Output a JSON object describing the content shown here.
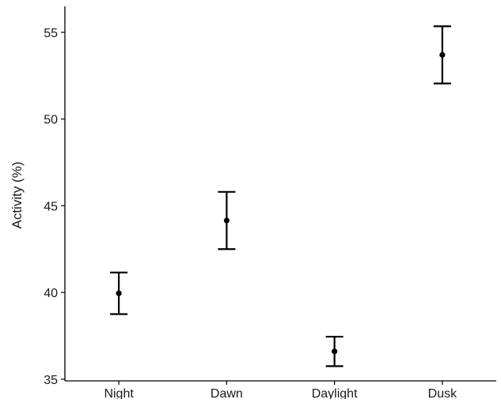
{
  "chart_data": {
    "type": "scatter",
    "style": "point-with-error-bars",
    "categories": [
      "Night",
      "Dawn",
      "Daylight",
      "Dusk"
    ],
    "series": [
      {
        "values": [
          39.95,
          44.15,
          36.6,
          53.7
        ],
        "error_low": [
          38.75,
          42.5,
          35.75,
          52.05
        ],
        "error_high": [
          41.15,
          45.8,
          37.45,
          55.35
        ]
      }
    ],
    "xlabel": "",
    "ylabel": "Activity (%)",
    "ylim": [
      34.9,
      56.5
    ],
    "yticks": [
      35,
      40,
      45,
      50,
      55
    ],
    "grid": false,
    "legend": "none",
    "colors": {
      "marks": "#000000",
      "axis": "#000000",
      "text": "#1a1a1a",
      "background": "#ffffff"
    }
  }
}
